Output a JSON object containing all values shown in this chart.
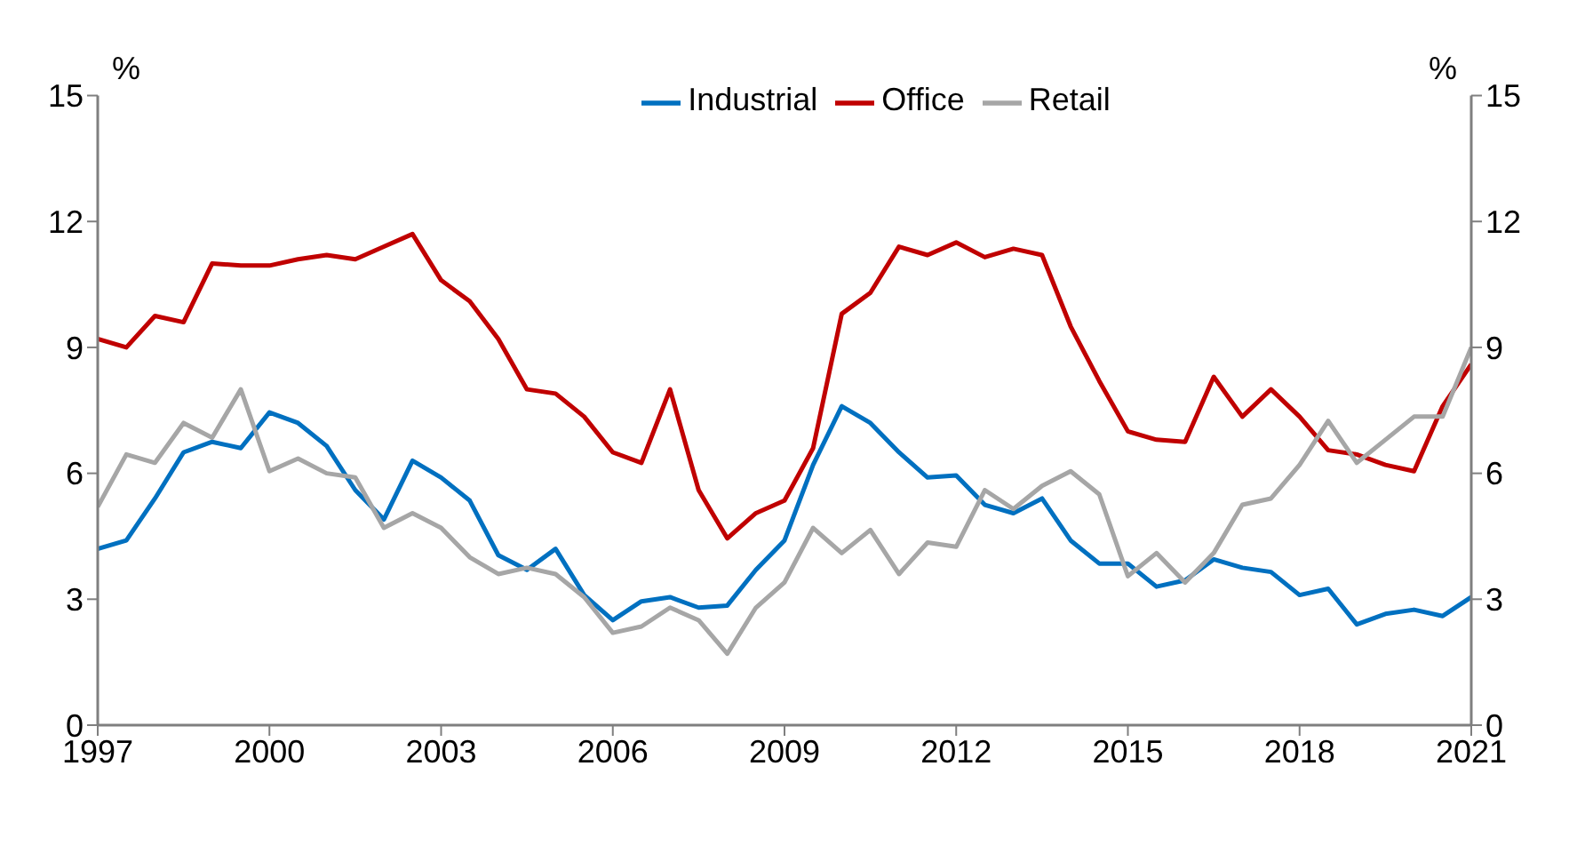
{
  "chart_data": {
    "type": "line",
    "ylabel": "%",
    "y2label": "%",
    "x": [
      1997,
      1997.5,
      1998,
      1998.5,
      1999,
      1999.5,
      2000,
      2000.5,
      2001,
      2001.5,
      2002,
      2002.5,
      2003,
      2003.5,
      2004,
      2004.5,
      2005,
      2005.5,
      2006,
      2006.5,
      2007,
      2007.5,
      2008,
      2008.5,
      2009,
      2009.5,
      2010,
      2010.5,
      2011,
      2011.5,
      2012,
      2012.5,
      2013,
      2013.5,
      2014,
      2014.5,
      2015,
      2015.5,
      2016,
      2016.5,
      2017,
      2017.5,
      2018,
      2018.5,
      2019,
      2019.5,
      2020,
      2020.5,
      2021
    ],
    "series": [
      {
        "name": "Industrial",
        "color": "#0070c0",
        "values": [
          4.2,
          4.4,
          5.4,
          6.5,
          6.75,
          6.6,
          7.45,
          7.2,
          6.65,
          5.6,
          4.9,
          6.3,
          5.9,
          5.35,
          4.05,
          3.7,
          4.2,
          3.1,
          2.5,
          2.95,
          3.05,
          2.8,
          2.85,
          3.7,
          4.4,
          6.2,
          7.6,
          7.2,
          6.5,
          5.9,
          5.95,
          5.25,
          5.05,
          5.4,
          4.4,
          3.85,
          3.85,
          3.3,
          3.45,
          3.95,
          3.75,
          3.65,
          3.1,
          3.25,
          2.4,
          2.65,
          2.75,
          2.6,
          3.05
        ]
      },
      {
        "name": "Office",
        "color": "#c00000",
        "values": [
          9.2,
          9.0,
          9.75,
          9.6,
          11.0,
          10.95,
          10.95,
          11.1,
          11.2,
          11.1,
          11.4,
          11.7,
          10.6,
          10.1,
          9.2,
          8.0,
          7.9,
          7.35,
          6.5,
          6.25,
          8.0,
          5.6,
          4.45,
          5.05,
          5.35,
          6.6,
          9.8,
          10.3,
          11.4,
          11.2,
          11.5,
          11.15,
          11.35,
          11.2,
          9.5,
          8.2,
          7.0,
          6.8,
          6.75,
          8.3,
          7.35,
          8.0,
          7.35,
          6.55,
          6.45,
          6.2,
          6.05,
          7.6,
          8.6
        ]
      },
      {
        "name": "Retail",
        "color": "#a6a6a6",
        "values": [
          5.2,
          6.45,
          6.25,
          7.2,
          6.85,
          8.0,
          6.05,
          6.35,
          6.0,
          5.9,
          4.7,
          5.05,
          4.7,
          4.0,
          3.6,
          3.75,
          3.6,
          3.05,
          2.2,
          2.35,
          2.8,
          2.5,
          1.7,
          2.8,
          3.4,
          4.7,
          4.1,
          4.65,
          3.6,
          4.35,
          4.25,
          5.6,
          5.15,
          5.7,
          6.05,
          5.5,
          3.55,
          4.1,
          3.4,
          4.1,
          5.25,
          5.4,
          6.2,
          7.25,
          6.25,
          6.8,
          7.35,
          7.35,
          9.0
        ]
      }
    ],
    "xlim": [
      1997,
      2021
    ],
    "xticks": [
      1997,
      2000,
      2003,
      2006,
      2009,
      2012,
      2015,
      2018,
      2021
    ],
    "ylim": [
      0,
      15
    ],
    "yticks": [
      0,
      3,
      6,
      9,
      12,
      15
    ],
    "y2lim": [
      0,
      15
    ],
    "y2ticks": [
      0,
      3,
      6,
      9,
      12,
      15
    ],
    "grid": false,
    "legend": "top"
  }
}
